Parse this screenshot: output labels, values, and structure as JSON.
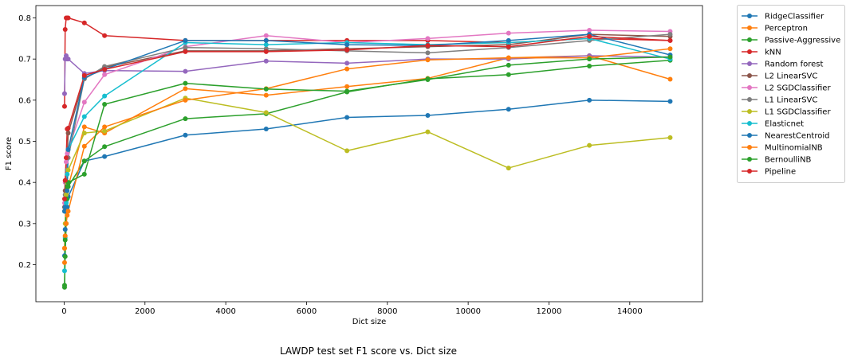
{
  "caption": "LAWDP test set F1 score vs. Dict size",
  "chart_data": {
    "type": "line",
    "title": "",
    "xlabel": "Dict size",
    "ylabel": "F1 score",
    "xlim": [
      -700,
      15800
    ],
    "ylim": [
      0.11,
      0.83
    ],
    "xticks": [
      0,
      2000,
      4000,
      6000,
      8000,
      10000,
      12000,
      14000
    ],
    "yticks": [
      0.2,
      0.3,
      0.4,
      0.5,
      0.6,
      0.7,
      0.8
    ],
    "grid": false,
    "legend_position": "outside-right",
    "x": [
      10,
      25,
      50,
      75,
      100,
      500,
      1000,
      3000,
      5000,
      7000,
      9000,
      11000,
      13000,
      15000
    ],
    "series": [
      {
        "name": "RidgeClassifier",
        "color": "#1f77b4",
        "values": [
          0.222,
          0.286,
          0.33,
          0.34,
          0.365,
          0.452,
          0.463,
          0.515,
          0.53,
          0.558,
          0.563,
          0.578,
          0.6,
          0.597
        ]
      },
      {
        "name": "Perceptron",
        "color": "#ff7f0e",
        "values": [
          0.205,
          0.27,
          0.3,
          0.33,
          0.39,
          0.535,
          0.52,
          0.628,
          0.612,
          0.633,
          0.653,
          0.703,
          0.708,
          0.651
        ]
      },
      {
        "name": "Passive-Aggressive",
        "color": "#2ca02c",
        "values": [
          0.145,
          0.22,
          0.3,
          0.36,
          0.39,
          0.452,
          0.487,
          0.555,
          0.567,
          0.62,
          0.652,
          0.662,
          0.683,
          0.697
        ]
      },
      {
        "name": "kNN",
        "color": "#d62728",
        "values": [
          0.585,
          0.772,
          0.8,
          0.8,
          0.8,
          0.788,
          0.757,
          0.745,
          0.745,
          0.745,
          0.745,
          0.74,
          0.75,
          0.745
        ]
      },
      {
        "name": "Random forest",
        "color": "#9467bd",
        "values": [
          0.616,
          0.7,
          0.708,
          0.7,
          0.7,
          0.665,
          0.672,
          0.67,
          0.695,
          0.69,
          0.7,
          0.7,
          0.708,
          0.705
        ]
      },
      {
        "name": "L2 LinearSVC",
        "color": "#8c564b",
        "values": [
          0.34,
          0.38,
          0.4,
          0.46,
          0.52,
          0.652,
          0.68,
          0.72,
          0.72,
          0.725,
          0.73,
          0.735,
          0.76,
          0.755
        ]
      },
      {
        "name": "L2 SGDClassifier",
        "color": "#e377c2",
        "values": [
          0.35,
          0.4,
          0.45,
          0.47,
          0.48,
          0.595,
          0.662,
          0.73,
          0.757,
          0.74,
          0.75,
          0.763,
          0.77,
          0.767
        ]
      },
      {
        "name": "L1 LinearSVC",
        "color": "#7f7f7f",
        "values": [
          0.33,
          0.37,
          0.4,
          0.43,
          0.46,
          0.652,
          0.682,
          0.728,
          0.725,
          0.72,
          0.715,
          0.728,
          0.745,
          0.76
        ]
      },
      {
        "name": "L1 SGDClassifier",
        "color": "#bcbd22",
        "values": [
          0.24,
          0.3,
          0.37,
          0.4,
          0.43,
          0.52,
          0.525,
          0.605,
          0.57,
          0.477,
          0.523,
          0.435,
          0.49,
          0.509
        ]
      },
      {
        "name": "Elasticnet",
        "color": "#17becf",
        "values": [
          0.185,
          0.265,
          0.35,
          0.42,
          0.48,
          0.56,
          0.61,
          0.74,
          0.735,
          0.74,
          0.735,
          0.74,
          0.75,
          0.7
        ]
      },
      {
        "name": "NearestCentroid",
        "color": "#1f77b4",
        "values": [
          0.33,
          0.34,
          0.36,
          0.38,
          0.48,
          0.655,
          0.675,
          0.745,
          0.745,
          0.735,
          0.733,
          0.745,
          0.76,
          0.71
        ]
      },
      {
        "name": "MultinomialNB",
        "color": "#ff7f0e",
        "values": [
          0.24,
          0.27,
          0.3,
          0.32,
          0.33,
          0.488,
          0.535,
          0.6,
          0.628,
          0.676,
          0.698,
          0.703,
          0.703,
          0.725
        ]
      },
      {
        "name": "BernoulliNB",
        "color": "#2ca02c",
        "values": [
          0.15,
          0.26,
          0.36,
          0.39,
          0.4,
          0.42,
          0.59,
          0.641,
          0.627,
          0.622,
          0.65,
          0.685,
          0.7,
          0.705
        ]
      },
      {
        "name": "Pipeline",
        "color": "#d62728",
        "values": [
          0.36,
          0.405,
          0.46,
          0.53,
          0.532,
          0.66,
          0.675,
          0.718,
          0.718,
          0.722,
          0.733,
          0.73,
          0.755,
          0.745
        ]
      }
    ]
  }
}
